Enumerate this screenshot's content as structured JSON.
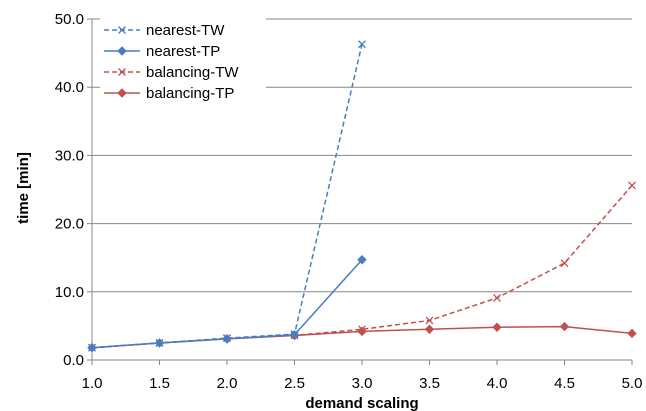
{
  "chart_data": {
    "type": "line",
    "title": "",
    "xlabel": "demand scaling",
    "ylabel": "time [min]",
    "xlim": [
      1.0,
      5.0
    ],
    "ylim": [
      0.0,
      50.0
    ],
    "x_ticks": [
      "1.0",
      "1.5",
      "2.0",
      "2.5",
      "3.0",
      "3.5",
      "4.0",
      "4.5",
      "5.0"
    ],
    "y_ticks": [
      "0.0",
      "10.0",
      "20.0",
      "30.0",
      "40.0",
      "50.0"
    ],
    "grid": true,
    "legend_position": "top-left",
    "series": [
      {
        "name": "nearest-TW",
        "color": "#4a7cc1",
        "line_style": "dashed",
        "marker": "x",
        "x": [
          1.0,
          1.5,
          2.0,
          2.5,
          3.0
        ],
        "y": [
          1.8,
          2.5,
          3.2,
          3.8,
          46.3
        ]
      },
      {
        "name": "nearest-TP",
        "color": "#4a7cc1",
        "line_style": "solid",
        "marker": "diamond",
        "x": [
          1.0,
          1.5,
          2.0,
          2.5,
          3.0
        ],
        "y": [
          1.8,
          2.5,
          3.1,
          3.7,
          14.7
        ]
      },
      {
        "name": "balancing-TW",
        "color": "#c0504d",
        "line_style": "dashed",
        "marker": "x",
        "x": [
          1.0,
          1.5,
          2.0,
          2.5,
          3.0,
          3.5,
          4.0,
          4.5,
          5.0
        ],
        "y": [
          1.8,
          2.5,
          3.2,
          3.6,
          4.5,
          5.8,
          9.1,
          14.2,
          25.6
        ]
      },
      {
        "name": "balancing-TP",
        "color": "#c0504d",
        "line_style": "solid",
        "marker": "diamond",
        "x": [
          1.0,
          1.5,
          2.0,
          2.5,
          3.0,
          3.5,
          4.0,
          4.5,
          5.0
        ],
        "y": [
          1.8,
          2.5,
          3.1,
          3.6,
          4.2,
          4.5,
          4.8,
          4.9,
          3.9
        ]
      }
    ]
  }
}
